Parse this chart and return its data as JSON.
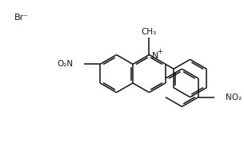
{
  "bg_color": "#ffffff",
  "line_color": "#1a1a1a",
  "line_width": 1.15,
  "figsize": [
    3.05,
    1.99
  ],
  "dpi": 100,
  "br_label": "Br⁻",
  "n_label": "N",
  "plus_label": "+",
  "methyl_label": "CH₃",
  "no2_left_label": "O₂N",
  "no2_right_label": "NO₂"
}
